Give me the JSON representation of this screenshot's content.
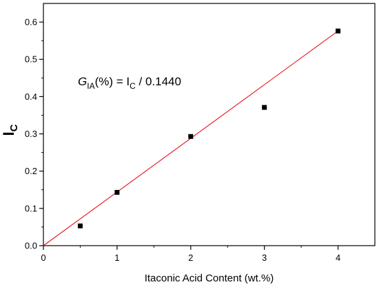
{
  "chart_data": {
    "type": "scatter",
    "xlabel": "Itaconic Acid Content (wt.%)",
    "ylabel": {
      "main": "I",
      "sub": "C"
    },
    "xlim": [
      0,
      4.5
    ],
    "ylim": [
      0,
      0.65
    ],
    "x_ticks": [
      0,
      1,
      2,
      3,
      4
    ],
    "x_tick_labels": [
      "0",
      "1",
      "2",
      "3",
      "4"
    ],
    "y_ticks": [
      0.0,
      0.1,
      0.2,
      0.3,
      0.4,
      0.5,
      0.6
    ],
    "y_tick_labels": [
      "0.0",
      "0.1",
      "0.2",
      "0.3",
      "0.4",
      "0.5",
      "0.6"
    ],
    "series": [
      {
        "type": "scatter",
        "marker": "square",
        "color": "#000000",
        "points": [
          {
            "x": 0.5,
            "y": 0.053
          },
          {
            "x": 1,
            "y": 0.143
          },
          {
            "x": 2,
            "y": 0.293
          },
          {
            "x": 3,
            "y": 0.371
          },
          {
            "x": 4,
            "y": 0.576
          }
        ]
      },
      {
        "type": "line",
        "color": "#e8101a",
        "points": [
          {
            "x": 0,
            "y": 0
          },
          {
            "x": 4,
            "y": 0.576
          }
        ]
      }
    ],
    "annotation": {
      "parts": [
        {
          "text": "G",
          "style": "italic"
        },
        {
          "text": "IA",
          "style": "sub"
        },
        {
          "text": "(%) = I",
          "style": "normal"
        },
        {
          "text": "C",
          "style": "sub"
        },
        {
          "text": " / 0.1440",
          "style": "normal"
        }
      ]
    },
    "grid": false,
    "legend": "none"
  }
}
